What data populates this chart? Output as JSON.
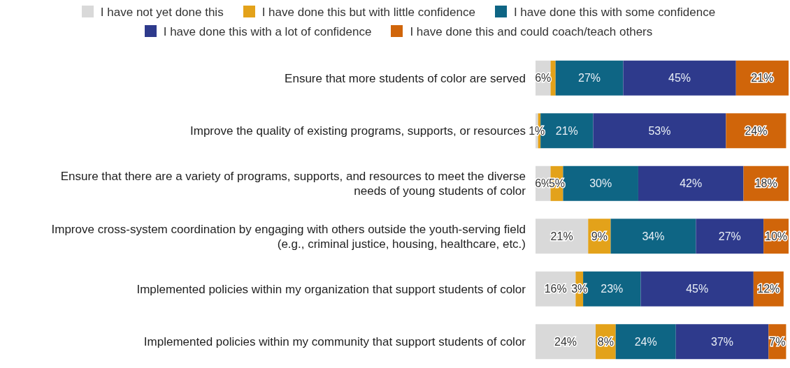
{
  "chart_data": {
    "type": "bar",
    "orientation": "horizontal",
    "stacked": true,
    "legend": "top",
    "xlim": [
      0,
      101
    ],
    "tick_labels": "y",
    "categories": [
      "Ensure that more students of color are served",
      "Improve the quality of existing programs, supports, or resources",
      "Ensure that there are a variety of programs, supports, and resources to meet the diverse needs of young students of color",
      "Improve cross-system coordination by engaging with others outside the youth-serving field (e.g., criminal justice, housing, healthcare, etc.)",
      "Implemented policies within my organization that support students of color",
      "Implemented policies within my community that support students of color"
    ],
    "series": [
      {
        "name": "I have not yet done this",
        "color": "#d9d9d9",
        "values": [
          6,
          1,
          6,
          21,
          16,
          24
        ],
        "value_labels": [
          "6%",
          "1%",
          "6%",
          "21%",
          "16%",
          "24%"
        ]
      },
      {
        "name": "I have done this but with little confidence",
        "color": "#e3a21a",
        "values": [
          2,
          1,
          5,
          9,
          3,
          8
        ],
        "value_labels": [
          null,
          null,
          "5%",
          "9%",
          "3%",
          "8%"
        ]
      },
      {
        "name": "I have done this with some confidence",
        "color": "#0e6584",
        "values": [
          27,
          21,
          30,
          34,
          23,
          24
        ],
        "value_labels": [
          "27%",
          "21%",
          "30%",
          "34%",
          "23%",
          "24%"
        ]
      },
      {
        "name": "I have done this with a lot of confidence",
        "color": "#2e3a8c",
        "values": [
          45,
          53,
          42,
          27,
          45,
          37
        ],
        "value_labels": [
          "45%",
          "53%",
          "42%",
          "27%",
          "45%",
          "37%"
        ]
      },
      {
        "name": "I have done this and could coach/teach others",
        "color": "#d0650a",
        "values": [
          21,
          24,
          18,
          10,
          12,
          7
        ],
        "value_labels": [
          "21%",
          "24%",
          "18%",
          "10%",
          "12%",
          "7%"
        ]
      }
    ]
  }
}
